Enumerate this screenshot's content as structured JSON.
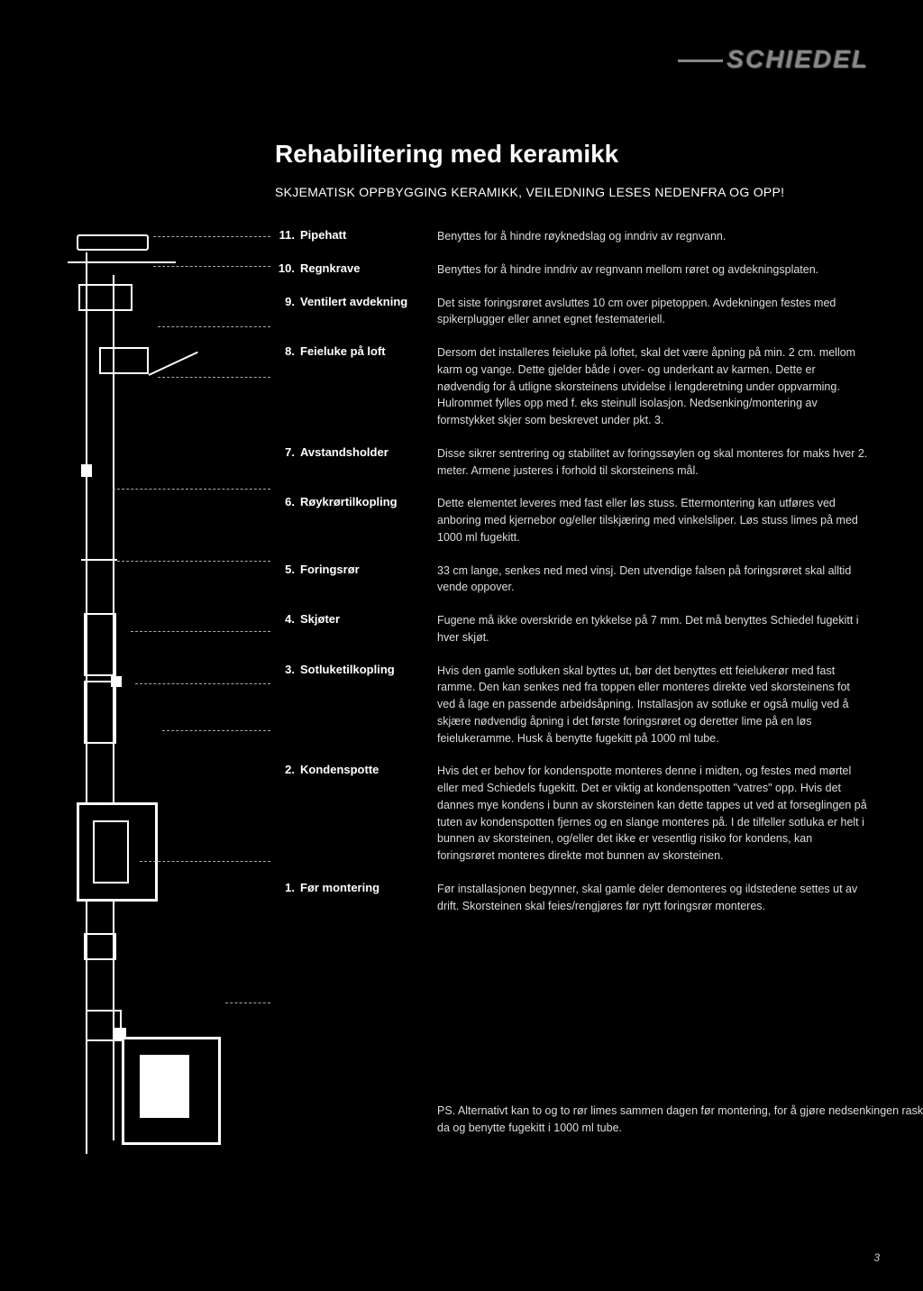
{
  "brand": "SCHIEDEL",
  "title": "Rehabilitering med keramikk",
  "subtitle": "SKJEMATISK OPPBYGGING KERAMIKK, VEILEDNING LESES NEDENFRA OG OPP!",
  "page_number": "3",
  "items": [
    {
      "num": "11.",
      "label": "Pipehatt",
      "desc": "Benyttes for å hindre røyknedslag og inndriv av regnvann."
    },
    {
      "num": "10.",
      "label": "Regnkrave",
      "desc": "Benyttes for å hindre inndriv av regnvann mellom røret og avdekningsplaten."
    },
    {
      "num": "9.",
      "label": "Ventilert avdekning",
      "desc": "Det siste foringsrøret avsluttes 10 cm over pipetoppen. Avdekningen festes med spikerplugger eller annet egnet festemateriell."
    },
    {
      "num": "8.",
      "label": "Feieluke på loft",
      "desc": "Dersom det installeres feieluke på loftet, skal det være åpning på min. 2 cm. mellom karm og vange. Dette gjelder både i over- og underkant av karmen. Dette er nødvendig for å utligne skorsteinens utvidelse i lengderetning under oppvarming. Hulrommet fylles opp med f. eks steinull isolasjon. Nedsenking/montering av formstykket skjer som beskrevet under pkt. 3."
    },
    {
      "num": "7.",
      "label": "Avstandsholder",
      "desc": "Disse sikrer sentrering og stabilitet av foringssøylen og skal monteres for maks hver 2. meter. Armene justeres i forhold til skorsteinens mål."
    },
    {
      "num": "6.",
      "label": "Røykrørtilkopling",
      "desc": "Dette elementet leveres med fast eller løs stuss. Ettermontering kan utføres ved anboring med kjernebor og/eller tilskjæring med vinkelsliper. Løs stuss limes på med 1000 ml fugekitt."
    },
    {
      "num": "5.",
      "label": "Foringsrør",
      "desc": "33 cm lange, senkes ned med vinsj. Den utvendige falsen på foringsrøret skal alltid vende oppover."
    },
    {
      "num": "4.",
      "label": "Skjøter",
      "desc": "Fugene må ikke overskride en tykkelse på 7 mm. Det må benyttes Schiedel fugekitt i hver skjøt."
    },
    {
      "num": "3.",
      "label": "Sotluketilkopling",
      "desc": "Hvis den gamle sotluken skal byttes ut, bør det benyttes ett feielukerør med fast ramme. Den kan senkes ned fra toppen eller monteres direkte ved skorsteinens fot ved å lage en passende arbeidsåpning. Installasjon av sotluke er også mulig ved å skjære nødvendig åpning i det første foringsrøret og deretter lime på en løs feielukeramme. Husk å benytte fugekitt på 1000 ml tube."
    },
    {
      "num": "2.",
      "label": "Kondenspotte",
      "desc": "Hvis det er behov for kondenspotte monteres denne i midten, og festes med mørtel eller med Schiedels fugekitt. Det er viktig at kondenspotten \"vatres\" opp. Hvis det dannes mye kondens i bunn av skorsteinen kan dette tappes ut ved at forseglingen på tuten av kondenspotten fjernes og en slange monteres på. I de tilfeller sotluka er helt i bunnen av skorsteinen, og/eller det ikke er vesentlig risiko for kondens, kan foringsrøret monteres direkte mot bunnen av skorsteinen."
    },
    {
      "num": "1.",
      "label": "Før montering",
      "desc": "Før installasjonen begynner, skal gamle deler demonteres og ildstedene settes ut av drift. Skorsteinen skal feies/rengjøres før nytt foringsrør monteres."
    }
  ],
  "ps": "PS. Alternativt kan to og to rør limes sammen dagen før montering, for å gjøre nedsenkingen raskere. Husk da og benytte fugekitt i 1000 ml tube."
}
